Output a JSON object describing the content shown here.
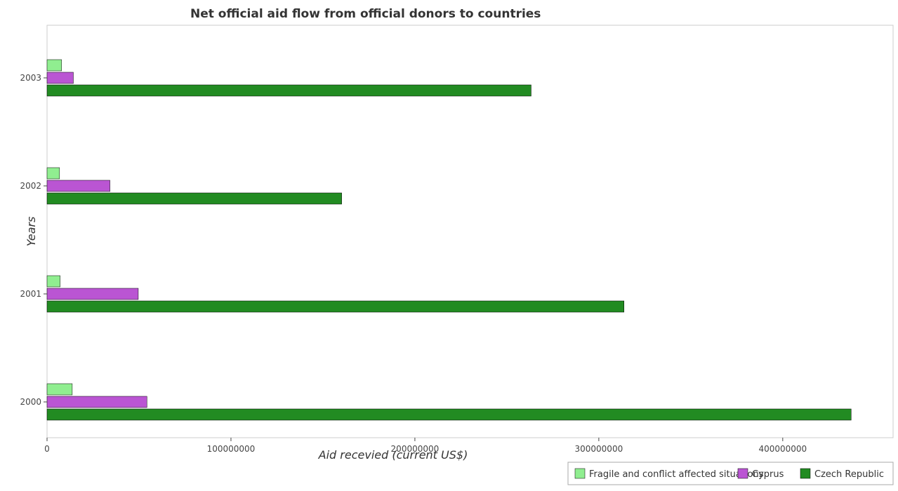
{
  "chart_data": {
    "type": "bar",
    "orientation": "horizontal",
    "title": "Net official aid flow from official donors to countries",
    "xlabel": "Aid recevied (current US$)",
    "ylabel": "Years",
    "categories": [
      "2000",
      "2001",
      "2002",
      "2003"
    ],
    "xlim": [
      0,
      460000000
    ],
    "xticks": [
      {
        "value": 0,
        "label": "0"
      },
      {
        "value": 100000000,
        "label": "100000000"
      },
      {
        "value": 200000000,
        "label": "200000000"
      },
      {
        "value": 300000000,
        "label": "300000000"
      },
      {
        "value": 400000000,
        "label": "400000000"
      }
    ],
    "series": [
      {
        "name": "Fragile and conflict affected situations",
        "color": "#90ee90",
        "values": [
          13700000,
          7100000,
          6800000,
          7900000
        ]
      },
      {
        "name": "Cyprus",
        "color": "#ba55d3",
        "values": [
          54300000,
          49600000,
          34200000,
          14300000
        ]
      },
      {
        "name": "Czech Republic",
        "color": "#228b22",
        "values": [
          437200000,
          313700000,
          160200000,
          263200000
        ]
      }
    ],
    "grid": false,
    "legend_position": "bottom-right"
  }
}
